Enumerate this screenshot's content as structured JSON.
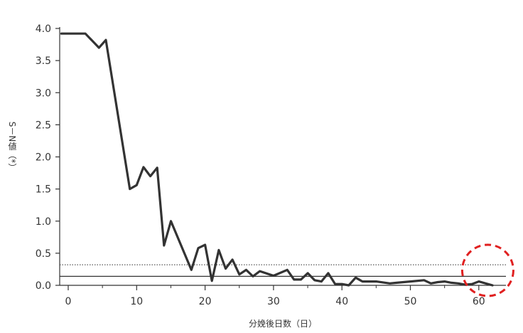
{
  "chart_data": {
    "type": "line",
    "title": "",
    "xlabel": "分娩後日数（日）",
    "ylabel": "S－N値（*）",
    "xlim": [
      -1,
      63
    ],
    "ylim": [
      0,
      4.0
    ],
    "x_ticks": [
      "0",
      "10",
      "20",
      "30",
      "40",
      "50",
      "60"
    ],
    "x_tick_values": [
      0,
      10,
      20,
      30,
      40,
      50,
      60
    ],
    "y_ticks": [
      "0.0",
      "0.5",
      "1.0",
      "1.5",
      "2.0",
      "2.5",
      "3.0",
      "3.5",
      "4.0"
    ],
    "y_tick_values": [
      0,
      0.5,
      1.0,
      1.5,
      2.0,
      2.5,
      3.0,
      3.5,
      4.0
    ],
    "grid": false,
    "series": [
      {
        "color": "#333333",
        "x": [
          -1,
          2.5,
          4.5,
          5.5,
          9,
          10,
          11,
          12,
          13,
          14,
          15,
          18,
          19,
          20,
          21,
          22,
          23,
          24,
          25,
          26,
          27,
          28,
          30,
          32,
          33,
          34,
          35,
          36,
          37,
          38,
          39,
          40,
          41,
          42,
          43,
          44,
          45,
          47,
          48,
          50,
          52,
          53,
          54,
          55,
          56,
          57,
          58,
          59,
          60,
          61,
          62
        ],
        "y": [
          3.92,
          3.92,
          3.7,
          3.82,
          1.5,
          1.56,
          1.84,
          1.7,
          1.83,
          0.62,
          1.0,
          0.24,
          0.58,
          0.63,
          0.07,
          0.55,
          0.26,
          0.4,
          0.17,
          0.24,
          0.14,
          0.22,
          0.15,
          0.24,
          0.09,
          0.09,
          0.19,
          0.08,
          0.06,
          0.19,
          0.02,
          0.02,
          0.0,
          0.12,
          0.06,
          0.06,
          0.06,
          0.03,
          0.04,
          0.06,
          0.08,
          0.03,
          0.05,
          0.06,
          0.04,
          0.03,
          0.01,
          0.02,
          0.06,
          0.03,
          0.0
        ]
      }
    ],
    "reference_lines": [
      {
        "y": 0.32,
        "style": "dotted",
        "color": "#555555"
      },
      {
        "y": 0.14,
        "style": "solid",
        "color": "#333333"
      }
    ],
    "annotations": [
      {
        "type": "circle",
        "x": 61,
        "y": 0.2,
        "style": "dashed",
        "color": "#e02020"
      }
    ]
  }
}
